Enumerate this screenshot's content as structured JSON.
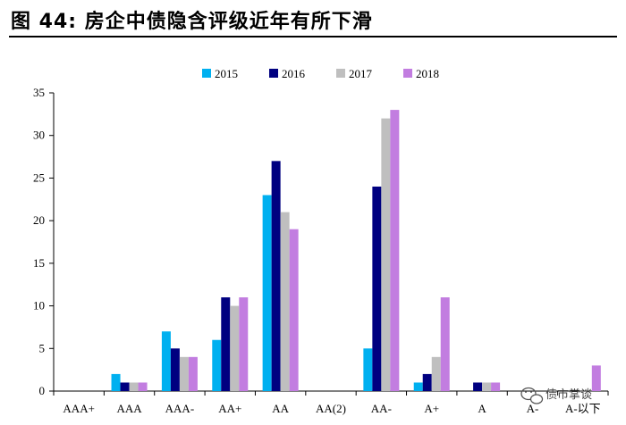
{
  "figure": {
    "title": "图 44:  房企中债隐含评级近年有所下滑"
  },
  "watermark": {
    "text": "债市掌谈",
    "icon": "wechat-icon"
  },
  "chart_data": {
    "type": "bar",
    "title": "",
    "xlabel": "",
    "ylabel": "",
    "ylim": [
      0,
      35
    ],
    "yticks": [
      0,
      5,
      10,
      15,
      20,
      25,
      30,
      35
    ],
    "grid": false,
    "legend_position": "top-center",
    "categories": [
      "AAA+",
      "AAA",
      "AAA-",
      "AA+",
      "AA",
      "AA(2)",
      "AA-",
      "A+",
      "A",
      "A-",
      "A-以下"
    ],
    "series": [
      {
        "name": "2015",
        "color": "#00B0F0",
        "values": [
          0,
          2,
          7,
          6,
          23,
          0,
          5,
          1,
          0,
          0,
          0
        ]
      },
      {
        "name": "2016",
        "color": "#000080",
        "values": [
          0,
          1,
          5,
          11,
          27,
          0,
          24,
          2,
          1,
          0,
          0
        ]
      },
      {
        "name": "2017",
        "color": "#BFBFBF",
        "values": [
          0,
          1,
          4,
          10,
          21,
          0,
          32,
          4,
          1,
          0,
          0
        ]
      },
      {
        "name": "2018",
        "color": "#C27DE0",
        "values": [
          0,
          1,
          4,
          11,
          19,
          0,
          33,
          11,
          1,
          0,
          3
        ]
      }
    ]
  }
}
